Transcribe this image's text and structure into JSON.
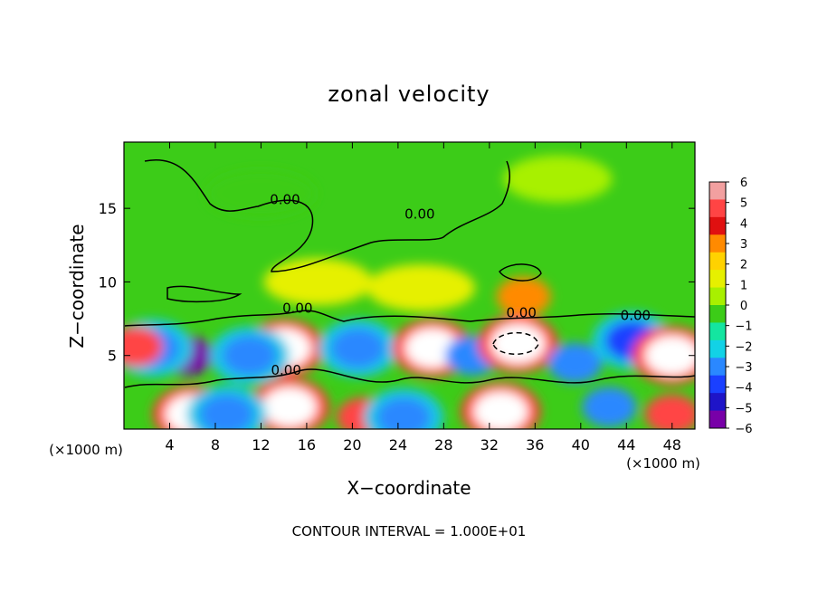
{
  "chart_data": {
    "type": "heatmap",
    "title": "zonal velocity",
    "xlabel": "X−coordinate",
    "ylabel": "Z−coordinate",
    "x_unit_left": "(×1000 m)",
    "x_unit_right": "(×1000 m)",
    "xlim": [
      0,
      50
    ],
    "ylim": [
      0,
      19.5
    ],
    "x_ticks": [
      4,
      8,
      12,
      16,
      20,
      24,
      28,
      32,
      36,
      40,
      44,
      48
    ],
    "y_ticks": [
      5,
      10,
      15
    ],
    "colorbar": {
      "ticks": [
        "6",
        "5",
        "4",
        "3",
        "2",
        "1",
        "0",
        "−1",
        "−2",
        "−3",
        "−4",
        "−5",
        "−6"
      ],
      "range": [
        -6,
        6
      ],
      "colors": [
        "#f2a0a0",
        "#ff4444",
        "#e01010",
        "#ff8a00",
        "#ffd200",
        "#e6f000",
        "#a8f000",
        "#3ccc18",
        "#14e5a0",
        "#12d2e6",
        "#2a88ff",
        "#1a40ff",
        "#1e14c8",
        "#7800a8"
      ]
    },
    "contour_labels": [
      {
        "text": "0.00",
        "x": 14.1,
        "z": 15.3
      },
      {
        "text": "0.00",
        "x": 25.9,
        "z": 14.3
      },
      {
        "text": "0.00",
        "x": 15.2,
        "z": 7.9
      },
      {
        "text": "0.00",
        "x": 34.8,
        "z": 7.6
      },
      {
        "text": "0.00",
        "x": 44.8,
        "z": 7.4
      },
      {
        "text": "0.00",
        "x": 14.2,
        "z": 3.7
      }
    ],
    "cells": [
      {
        "x": 5.5,
        "z": 5.0,
        "v": -6.5
      },
      {
        "x": 2.5,
        "z": 5.5,
        "v": -3.5
      },
      {
        "x": 1.0,
        "z": 5.6,
        "v": 5.0
      },
      {
        "x": 14.0,
        "z": 5.5,
        "v": 6.5
      },
      {
        "x": 11.0,
        "z": 5.0,
        "v": -3.5
      },
      {
        "x": 20.5,
        "z": 5.5,
        "v": -3.5
      },
      {
        "x": 27.0,
        "z": 5.5,
        "v": 6.5
      },
      {
        "x": 30.5,
        "z": 5.0,
        "v": -3.0
      },
      {
        "x": 34.5,
        "z": 5.8,
        "v": 6.5
      },
      {
        "x": 39.5,
        "z": 4.5,
        "v": -3.0
      },
      {
        "x": 44.5,
        "z": 6.0,
        "v": -4.5
      },
      {
        "x": 48.0,
        "z": 5.0,
        "v": 6.5
      },
      {
        "x": 6.0,
        "z": 1.0,
        "v": 6.5
      },
      {
        "x": 14.5,
        "z": 1.5,
        "v": 6.5
      },
      {
        "x": 9.0,
        "z": 1.0,
        "v": -3.5
      },
      {
        "x": 21.0,
        "z": 0.8,
        "v": 5.0
      },
      {
        "x": 24.5,
        "z": 0.8,
        "v": -3.5
      },
      {
        "x": 33.0,
        "z": 1.2,
        "v": 6.5
      },
      {
        "x": 42.5,
        "z": 1.5,
        "v": -3.0
      },
      {
        "x": 48.0,
        "z": 1.0,
        "v": 5.0
      },
      {
        "x": 17.0,
        "z": 10.0,
        "v": 1.5
      },
      {
        "x": 26.0,
        "z": 9.6,
        "v": 1.5
      },
      {
        "x": 35.0,
        "z": 9.0,
        "v": 3.0
      },
      {
        "x": 12.0,
        "z": 16.0,
        "v": 0.0
      },
      {
        "x": 38.0,
        "z": 17.0,
        "v": 0.2
      }
    ],
    "grid": false
  },
  "footer": {
    "contour_interval": "CONTOUR INTERVAL = 1.000E+01"
  }
}
